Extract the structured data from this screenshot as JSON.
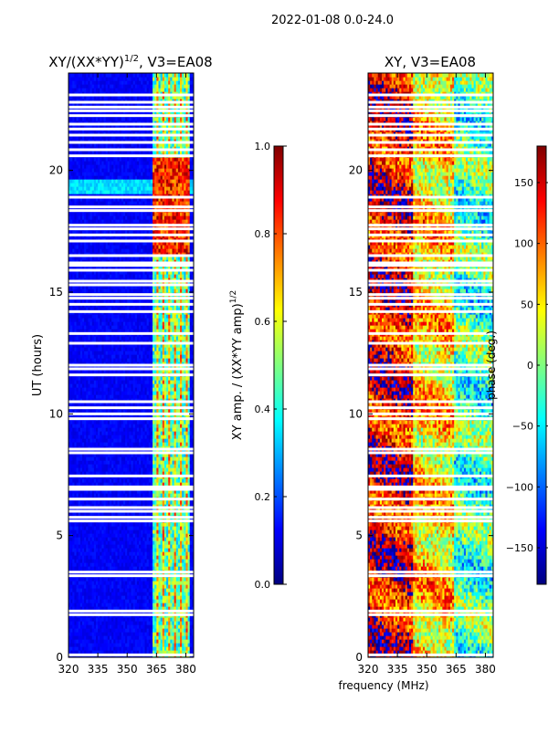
{
  "suptitle": "2022-01-08 0.0-24.0",
  "shared_xlabel": "frequency (MHz)",
  "chart_data": [
    {
      "type": "heatmap",
      "title": "XY/(XX*YY)",
      "title_sup": "1/2",
      "title_suffix": ", V3=EA08",
      "xlabel": "",
      "ylabel": "UT (hours)",
      "xlim": [
        320,
        384
      ],
      "ylim": [
        0,
        24
      ],
      "xticks": [
        "320",
        "335",
        "350",
        "365",
        "380"
      ],
      "xtick_values": [
        320,
        335,
        350,
        365,
        380
      ],
      "yticks": [
        "0",
        "5",
        "10",
        "15",
        "20"
      ],
      "ytick_values": [
        0,
        5,
        10,
        15,
        20
      ],
      "colorbar": {
        "label": "XY amp. / (XX*YY amp)",
        "label_sup": "1/2",
        "range": [
          0.0,
          1.0
        ],
        "ticks": [
          "0.0",
          "0.2",
          "0.4",
          "0.6",
          "0.8",
          "1.0"
        ],
        "tick_values": [
          0.0,
          0.2,
          0.4,
          0.6,
          0.8,
          1.0
        ],
        "colormap": "jet"
      },
      "features": {
        "background_level": 0.12,
        "active_band_mhz": [
          363,
          381
        ],
        "active_level": 0.45,
        "strong_hours": [
          [
            16.5,
            20.5
          ]
        ],
        "strong_level": 0.9,
        "lower_band_hint_hours": [
          19.0,
          19.6
        ]
      }
    },
    {
      "type": "heatmap",
      "title": "XY, V3=EA08",
      "xlabel": "frequency (MHz)",
      "ylabel": "",
      "xlim": [
        320,
        384
      ],
      "ylim": [
        0,
        24
      ],
      "xticks": [
        "320",
        "335",
        "350",
        "365",
        "380"
      ],
      "xtick_values": [
        320,
        335,
        350,
        365,
        380
      ],
      "yticks": [
        "0",
        "5",
        "10",
        "15",
        "20"
      ],
      "ytick_values": [
        0,
        5,
        10,
        15,
        20
      ],
      "colorbar": {
        "label": "phase (deg.)",
        "range": [
          -180,
          180
        ],
        "ticks": [
          "−150",
          "−100",
          "−50",
          "0",
          "50",
          "100",
          "150"
        ],
        "tick_values": [
          -150,
          -100,
          -50,
          0,
          50,
          100,
          150
        ],
        "colormap": "jet"
      },
      "features": {
        "low_freq_phase_deg": 140,
        "mid_freq_phase_deg": 60,
        "high_freq_phase_deg": -20
      }
    }
  ],
  "flagged_hours": [
    0.1,
    1.75,
    1.9,
    3.35,
    3.5,
    5.6,
    5.75,
    6.0,
    6.15,
    6.5,
    6.9,
    7.0,
    7.45,
    8.4,
    8.55,
    9.8,
    10.0,
    10.25,
    10.5,
    11.6,
    11.85,
    12.0,
    12.9,
    13.3,
    14.2,
    14.5,
    14.75,
    14.9,
    15.3,
    15.45,
    15.9,
    16.1,
    16.2,
    16.5,
    17.1,
    17.35,
    17.6,
    17.75,
    18.35,
    18.5,
    18.9,
    20.6,
    20.85,
    21.15,
    21.45,
    21.7,
    21.9,
    22.25,
    22.45,
    22.6,
    22.8,
    23.1
  ]
}
